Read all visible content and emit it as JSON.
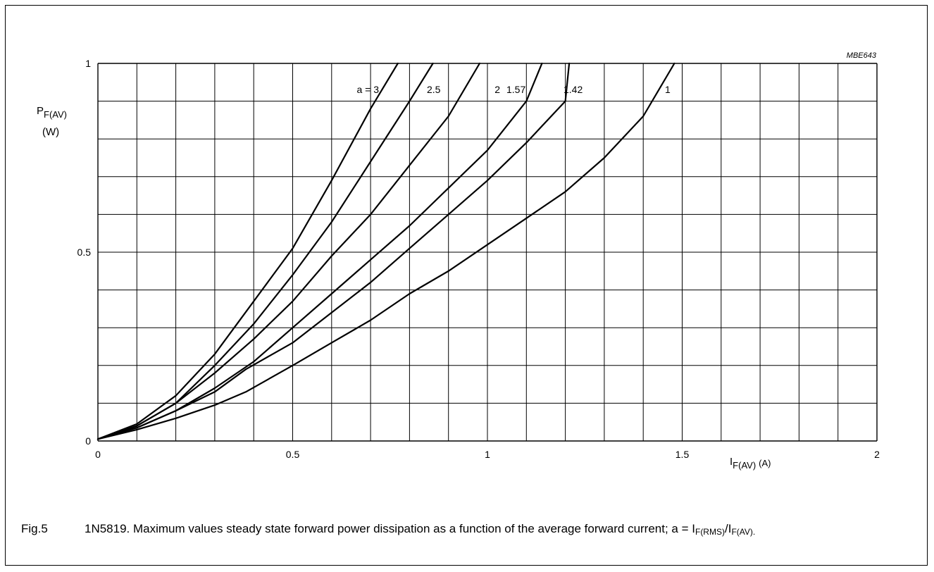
{
  "chart_data": {
    "type": "line",
    "code": "MBE643",
    "ylabel_main": "P",
    "ylabel_sub": "F(AV)",
    "ylabel_unit": "(W)",
    "xlabel_main": "I",
    "xlabel_sub": "F(AV)",
    "xlabel_unit": "(A)",
    "xlim": [
      0,
      2
    ],
    "ylim": [
      0,
      1
    ],
    "grid": true,
    "x_ticks": [
      {
        "value": 0,
        "label": "0"
      },
      {
        "value": 0.5,
        "label": "0.5"
      },
      {
        "value": 1,
        "label": "1"
      },
      {
        "value": 1.5,
        "label": "1.5"
      },
      {
        "value": 2,
        "label": "2"
      }
    ],
    "y_ticks": [
      {
        "value": 0,
        "label": "0"
      },
      {
        "value": 0.5,
        "label": "0.5"
      },
      {
        "value": 1,
        "label": "1"
      }
    ],
    "series": [
      {
        "name": "a = 3",
        "label": "a = 3",
        "points": [
          [
            0,
            0.005
          ],
          [
            0.1,
            0.045
          ],
          [
            0.2,
            0.12
          ],
          [
            0.3,
            0.23
          ],
          [
            0.4,
            0.37
          ],
          [
            0.5,
            0.51
          ],
          [
            0.6,
            0.69
          ],
          [
            0.7,
            0.88
          ],
          [
            0.77,
            1.0
          ]
        ]
      },
      {
        "name": "2.5",
        "label": "2.5",
        "points": [
          [
            0,
            0.005
          ],
          [
            0.1,
            0.04
          ],
          [
            0.2,
            0.1
          ],
          [
            0.3,
            0.2
          ],
          [
            0.4,
            0.31
          ],
          [
            0.5,
            0.44
          ],
          [
            0.6,
            0.58
          ],
          [
            0.7,
            0.74
          ],
          [
            0.8,
            0.9
          ],
          [
            0.86,
            1.0
          ]
        ]
      },
      {
        "name": "2",
        "label": "2",
        "points": [
          [
            0,
            0.005
          ],
          [
            0.1,
            0.04
          ],
          [
            0.2,
            0.1
          ],
          [
            0.3,
            0.18
          ],
          [
            0.4,
            0.27
          ],
          [
            0.5,
            0.37
          ],
          [
            0.6,
            0.49
          ],
          [
            0.7,
            0.6
          ],
          [
            0.8,
            0.73
          ],
          [
            0.9,
            0.86
          ],
          [
            0.98,
            1.0
          ]
        ]
      },
      {
        "name": "1.57",
        "label": "1.57",
        "points": [
          [
            0,
            0.005
          ],
          [
            0.1,
            0.035
          ],
          [
            0.2,
            0.08
          ],
          [
            0.3,
            0.14
          ],
          [
            0.4,
            0.21
          ],
          [
            0.5,
            0.3
          ],
          [
            0.6,
            0.39
          ],
          [
            0.7,
            0.48
          ],
          [
            0.8,
            0.57
          ],
          [
            0.9,
            0.67
          ],
          [
            1.0,
            0.77
          ],
          [
            1.1,
            0.9
          ],
          [
            1.14,
            1.0
          ]
        ]
      },
      {
        "name": "1.42",
        "label": "1.42",
        "points": [
          [
            0,
            0.005
          ],
          [
            0.1,
            0.035
          ],
          [
            0.2,
            0.08
          ],
          [
            0.3,
            0.13
          ],
          [
            0.38,
            0.19
          ],
          [
            0.5,
            0.26
          ],
          [
            0.6,
            0.34
          ],
          [
            0.7,
            0.42
          ],
          [
            0.8,
            0.51
          ],
          [
            0.9,
            0.6
          ],
          [
            1.0,
            0.69
          ],
          [
            1.1,
            0.79
          ],
          [
            1.2,
            0.9
          ],
          [
            1.21,
            1.0
          ]
        ]
      },
      {
        "name": "1",
        "label": "1",
        "points": [
          [
            0,
            0.005
          ],
          [
            0.1,
            0.03
          ],
          [
            0.2,
            0.06
          ],
          [
            0.3,
            0.095
          ],
          [
            0.38,
            0.13
          ],
          [
            0.5,
            0.2
          ],
          [
            0.6,
            0.26
          ],
          [
            0.7,
            0.32
          ],
          [
            0.8,
            0.39
          ],
          [
            0.9,
            0.45
          ],
          [
            1.0,
            0.52
          ],
          [
            1.1,
            0.59
          ],
          [
            1.2,
            0.66
          ],
          [
            1.3,
            0.75
          ],
          [
            1.4,
            0.86
          ],
          [
            1.48,
            1.0
          ]
        ]
      }
    ]
  },
  "caption": {
    "fig": "Fig.5",
    "text_main": "1N5819. Maximum values steady state forward power dissipation as a function of the average forward current; a = I",
    "sub1": "F(RMS)",
    "slash": "/I",
    "sub2": "F(AV)."
  }
}
